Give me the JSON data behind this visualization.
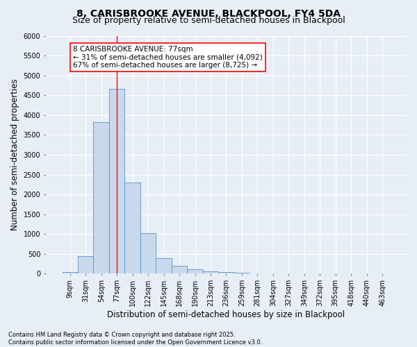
{
  "title_line1": "8, CARISBROOKE AVENUE, BLACKPOOL, FY4 5DA",
  "title_line2": "Size of property relative to semi-detached houses in Blackpool",
  "xlabel": "Distribution of semi-detached houses by size in Blackpool",
  "ylabel": "Number of semi-detached properties",
  "bin_labels": [
    "9sqm",
    "31sqm",
    "54sqm",
    "77sqm",
    "100sqm",
    "122sqm",
    "145sqm",
    "168sqm",
    "190sqm",
    "213sqm",
    "236sqm",
    "259sqm",
    "281sqm",
    "304sqm",
    "327sqm",
    "349sqm",
    "372sqm",
    "395sqm",
    "418sqm",
    "440sqm",
    "463sqm"
  ],
  "bar_values": [
    50,
    450,
    3820,
    4670,
    2300,
    1020,
    390,
    195,
    105,
    65,
    45,
    20,
    0,
    0,
    0,
    0,
    0,
    0,
    0,
    0,
    0
  ],
  "bar_color": "#c9d9ed",
  "bar_edge_color": "#5b8ec4",
  "vline_x_index": 3,
  "vline_color": "red",
  "annotation_text": "8 CARISBROOKE AVENUE: 77sqm\n← 31% of semi-detached houses are smaller (4,092)\n67% of semi-detached houses are larger (8,725) →",
  "annotation_box_color": "white",
  "annotation_box_edge": "red",
  "ylim": [
    0,
    6000
  ],
  "yticks": [
    0,
    500,
    1000,
    1500,
    2000,
    2500,
    3000,
    3500,
    4000,
    4500,
    5000,
    5500,
    6000
  ],
  "background_color": "#e8eef5",
  "grid_color": "white",
  "footer_text": "Contains HM Land Registry data © Crown copyright and database right 2025.\nContains public sector information licensed under the Open Government Licence v3.0.",
  "title_fontsize": 10,
  "subtitle_fontsize": 9,
  "axis_label_fontsize": 8.5,
  "tick_fontsize": 7,
  "annotation_fontsize": 7.5,
  "footer_fontsize": 6
}
